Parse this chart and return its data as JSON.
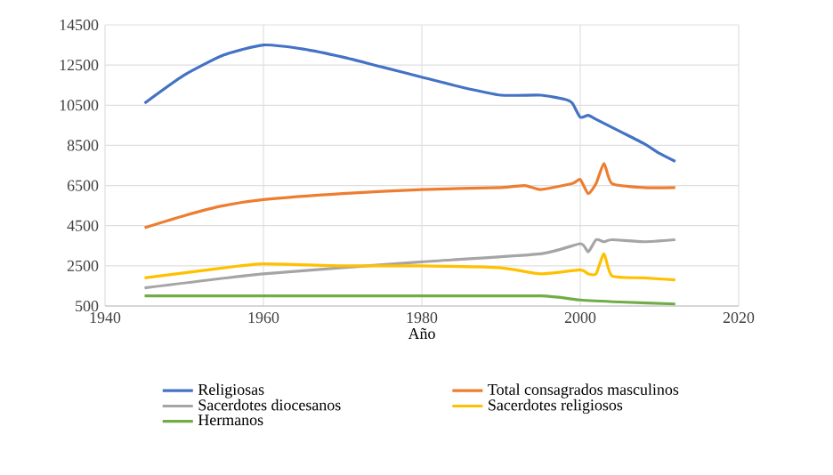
{
  "chart_data": {
    "type": "line",
    "xlabel": "Año",
    "xlim": [
      1940,
      2020
    ],
    "xticks": [
      1940,
      1960,
      1980,
      2000,
      2020
    ],
    "ylim": [
      500,
      14500
    ],
    "yticks": [
      500,
      2500,
      4500,
      6500,
      8500,
      10500,
      12500,
      14500
    ],
    "grid": true,
    "legend": "bottom",
    "marker": "none",
    "line_style": "solid",
    "series": [
      {
        "name": "Religiosas",
        "color": "#4472c4",
        "x": [
          1945,
          1950,
          1955,
          1960,
          1965,
          1970,
          1975,
          1980,
          1985,
          1990,
          1995,
          1998,
          1999,
          2000,
          2001,
          2002,
          2005,
          2008,
          2010,
          2012
        ],
        "values": [
          10600,
          12000,
          13000,
          13500,
          13300,
          12900,
          12400,
          11900,
          11400,
          11000,
          11000,
          10800,
          10600,
          9900,
          10000,
          9800,
          9200,
          8600,
          8100,
          7700
        ]
      },
      {
        "name": "Total consagrados masculinos",
        "color": "#ed7d31",
        "x": [
          1945,
          1950,
          1955,
          1960,
          1970,
          1980,
          1990,
          1993,
          1995,
          1999,
          2000,
          2001,
          2002,
          2003,
          2004,
          2008,
          2012
        ],
        "values": [
          4400,
          5000,
          5500,
          5800,
          6100,
          6300,
          6400,
          6500,
          6300,
          6600,
          6800,
          6100,
          6600,
          7600,
          6600,
          6400,
          6400
        ]
      },
      {
        "name": "Sacerdotes diocesanos",
        "color": "#a5a5a5",
        "x": [
          1945,
          1960,
          1980,
          1995,
          2000,
          2001,
          2002,
          2003,
          2004,
          2008,
          2012
        ],
        "values": [
          1400,
          2100,
          2700,
          3100,
          3600,
          3200,
          3800,
          3700,
          3800,
          3700,
          3800
        ]
      },
      {
        "name": "Sacerdotes religiosos",
        "color": "#ffc000",
        "x": [
          1945,
          1955,
          1960,
          1970,
          1980,
          1990,
          1995,
          2000,
          2001,
          2002,
          2003,
          2004,
          2008,
          2012
        ],
        "values": [
          1900,
          2400,
          2600,
          2500,
          2500,
          2400,
          2100,
          2300,
          2100,
          2100,
          3100,
          2000,
          1900,
          1800
        ]
      },
      {
        "name": "Hermanos",
        "color": "#70ad47",
        "x": [
          1945,
          1960,
          1980,
          1995,
          2000,
          2005,
          2012
        ],
        "values": [
          1000,
          1000,
          1000,
          1000,
          800,
          700,
          600
        ]
      }
    ]
  }
}
